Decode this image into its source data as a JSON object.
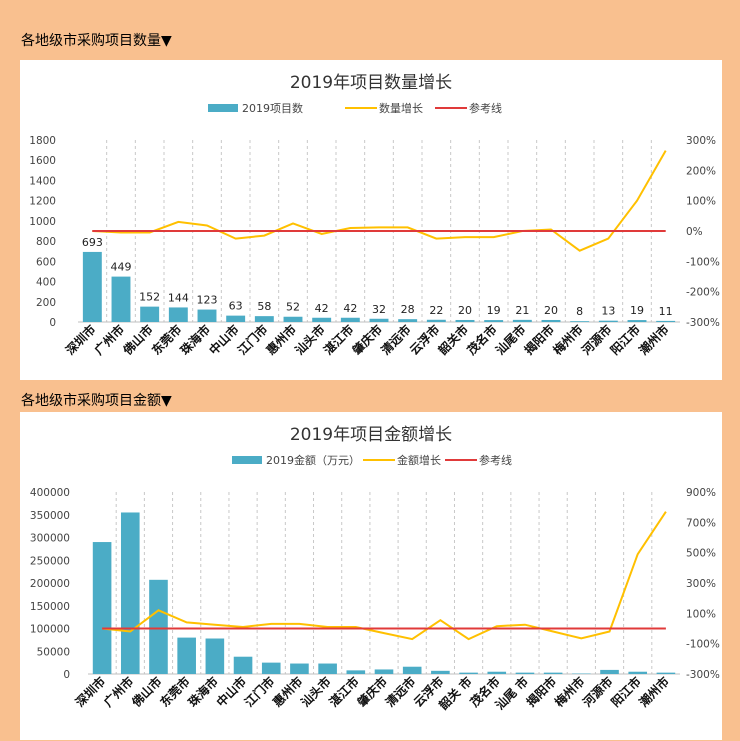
{
  "sections": [
    {
      "heading": "各地级市采购项目数量▼"
    },
    {
      "heading": "各地级市采购项目金额▼"
    }
  ],
  "chart_data": [
    {
      "type": "bar",
      "title": "2019年项目数量增长",
      "categories": [
        "深圳市",
        "广州市",
        "佛山市",
        "东莞市",
        "珠海市",
        "中山市",
        "江门市",
        "惠州市",
        "汕头市",
        "湛江市",
        "肇庆市",
        "清远市",
        "云浮市",
        "韶关市",
        "茂名市",
        "汕尾市",
        "揭阳市",
        "梅州市",
        "河源市",
        "阳江市",
        "潮州市"
      ],
      "series": [
        {
          "name": "2019项目数",
          "type": "bar",
          "axis": "left",
          "color": "#4bacc6",
          "values": [
            693,
            449,
            152,
            144,
            123,
            63,
            58,
            52,
            42,
            42,
            32,
            28,
            22,
            20,
            19,
            21,
            20,
            8,
            13,
            19,
            11
          ]
        },
        {
          "name": "数量增长",
          "type": "line",
          "axis": "right",
          "color": "#ffc000",
          "values": [
            0,
            -5,
            -5,
            30,
            18,
            -25,
            -15,
            25,
            -10,
            10,
            12,
            12,
            -25,
            -20,
            -20,
            0,
            5,
            -65,
            -25,
            100,
            265
          ]
        },
        {
          "name": "参考线",
          "type": "line",
          "axis": "right",
          "color": "#e03a3a",
          "values": [
            0,
            0,
            0,
            0,
            0,
            0,
            0,
            0,
            0,
            0,
            0,
            0,
            0,
            0,
            0,
            0,
            0,
            0,
            0,
            0,
            0
          ]
        }
      ],
      "show_data_labels": true,
      "y_left": {
        "ticks": [
          0,
          200,
          400,
          600,
          800,
          1000,
          1200,
          1400,
          1600,
          1800
        ],
        "range": [
          0,
          1800
        ]
      },
      "y_right": {
        "ticks": [
          "300%",
          "200%",
          "100%",
          "0%",
          "-100%",
          "-200%",
          "-300%"
        ],
        "range": [
          -300,
          300
        ]
      },
      "grid": "vertical-dashed",
      "legend": "top"
    },
    {
      "type": "bar",
      "title": "2019年项目金额增长",
      "categories": [
        "深圳市",
        "广州市",
        "佛山市",
        "东莞市",
        "珠海市",
        "中山市",
        "江门市",
        "惠州市",
        "汕头市",
        "湛江市",
        "肇庆市",
        "清远市",
        "云浮市",
        "韶关 市",
        "茂名市",
        "汕尾 市",
        "揭阳市",
        "梅州市",
        "河源市",
        "阳江市",
        "潮州市"
      ],
      "series": [
        {
          "name": "2019金额（万元）",
          "type": "bar",
          "axis": "left",
          "color": "#4bacc6",
          "values": [
            290000,
            355000,
            207000,
            80000,
            78000,
            38000,
            25000,
            23000,
            23000,
            8000,
            10000,
            16000,
            7000,
            3000,
            5000,
            3000,
            3000,
            1000,
            9000,
            5000,
            3000
          ]
        },
        {
          "name": "金额增长",
          "type": "line",
          "axis": "right",
          "color": "#ffc000",
          "values": [
            0,
            -20,
            120,
            40,
            25,
            10,
            30,
            30,
            10,
            10,
            -30,
            -70,
            55,
            -70,
            15,
            25,
            -20,
            -65,
            -20,
            490,
            770
          ]
        },
        {
          "name": "参考线",
          "type": "line",
          "axis": "right",
          "color": "#e03a3a",
          "values": [
            0,
            0,
            0,
            0,
            0,
            0,
            0,
            0,
            0,
            0,
            0,
            0,
            0,
            0,
            0,
            0,
            0,
            0,
            0,
            0,
            0
          ]
        }
      ],
      "show_data_labels": false,
      "y_left": {
        "ticks": [
          0,
          50000,
          100000,
          150000,
          200000,
          250000,
          300000,
          350000,
          400000
        ],
        "range": [
          0,
          400000
        ]
      },
      "y_right": {
        "ticks": [
          "900%",
          "700%",
          "500%",
          "300%",
          "100%",
          "-100%",
          "-300%"
        ],
        "range": [
          -300,
          900
        ]
      },
      "grid": "vertical-dashed",
      "legend": "top"
    }
  ]
}
